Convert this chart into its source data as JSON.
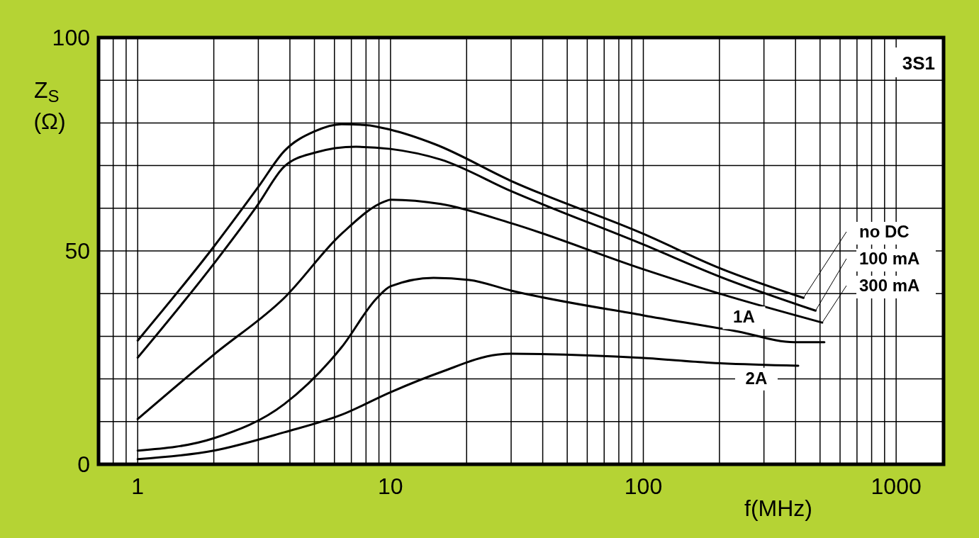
{
  "chart_data": {
    "type": "line",
    "title": "3S1",
    "xlabel": "f(MHz)",
    "ylabel": "Z$_{S}$ (Ω)",
    "log": "x",
    "grid": true,
    "marker": "none",
    "line_style": "solid",
    "xlim": [
      0.7,
      1540
    ],
    "ylim": [
      0,
      100
    ],
    "xticks": [
      {
        "value": 0.8,
        "label": null
      },
      {
        "value": 0.9,
        "label": null
      },
      1,
      {
        "value": 2,
        "label": null
      },
      {
        "value": 3,
        "label": null
      },
      {
        "value": 4,
        "label": null
      },
      {
        "value": 5,
        "label": null
      },
      {
        "value": 6,
        "label": null
      },
      {
        "value": 7,
        "label": null
      },
      {
        "value": 8,
        "label": null
      },
      {
        "value": 9,
        "label": null
      },
      10,
      {
        "value": 20,
        "label": null
      },
      {
        "value": 30,
        "label": null
      },
      {
        "value": 40,
        "label": null
      },
      {
        "value": 50,
        "label": null
      },
      {
        "value": 60,
        "label": null
      },
      {
        "value": 70,
        "label": null
      },
      {
        "value": 80,
        "label": null
      },
      {
        "value": 90,
        "label": null
      },
      100,
      {
        "value": 200,
        "label": null
      },
      {
        "value": 300,
        "label": null
      },
      {
        "value": 400,
        "label": null
      },
      {
        "value": 500,
        "label": null
      },
      {
        "value": 600,
        "label": null
      },
      {
        "value": 700,
        "label": null
      },
      {
        "value": 800,
        "label": null
      },
      {
        "value": 900,
        "label": null
      },
      1000
    ],
    "yticks": [
      0,
      {
        "value": 10,
        "label": null
      },
      {
        "value": 20,
        "label": null
      },
      {
        "value": 30,
        "label": null
      },
      {
        "value": 40,
        "label": null
      },
      50,
      {
        "value": 60,
        "label": null
      },
      {
        "value": 70,
        "label": null
      },
      {
        "value": 80,
        "label": null
      },
      {
        "value": 90,
        "label": null
      },
      100
    ],
    "series": [
      {
        "name": "no DC",
        "color": "#000000",
        "x": [
          1,
          2,
          3,
          3.8,
          5,
          6.4,
          8,
          10,
          15,
          30,
          100,
          200,
          430
        ],
        "values": [
          29,
          51,
          65,
          73.4,
          78,
          79.7,
          79.5,
          78.4,
          75,
          66.4,
          54,
          46,
          39
        ]
      },
      {
        "name": "100 mA",
        "color": "#000000",
        "x": [
          1,
          2,
          3,
          3.8,
          5,
          7.3,
          10,
          15.8,
          30,
          100,
          200,
          480
        ],
        "values": [
          25,
          47,
          61,
          69.8,
          73,
          74.4,
          73.9,
          71.4,
          64,
          51.5,
          44,
          36
        ]
      },
      {
        "name": "300 mA",
        "color": "#000000",
        "x": [
          1,
          2,
          3.8,
          6.4,
          9.5,
          10,
          15.8,
          30,
          100,
          200,
          510
        ],
        "values": [
          10.6,
          25.7,
          39,
          54,
          61.6,
          62,
          61,
          56.5,
          45.7,
          40,
          33.2
        ]
      },
      {
        "name": "1A",
        "color": "#000000",
        "x": [
          1,
          2,
          3.8,
          6.4,
          8.85,
          10,
          14.8,
          20.5,
          30,
          100,
          237,
          395,
          520
        ],
        "values": [
          3.2,
          6.1,
          14.1,
          27.4,
          39,
          41.7,
          43.7,
          43.2,
          40.7,
          34.9,
          31.1,
          28.6,
          28.6
        ]
      },
      {
        "name": "2A",
        "color": "#000000",
        "x": [
          1,
          2,
          3.8,
          6.4,
          10,
          15.8,
          26.5,
          30,
          100,
          183,
          410
        ],
        "values": [
          1.2,
          3.2,
          7.5,
          11.6,
          16.9,
          21.6,
          25.7,
          25.9,
          24.9,
          23.8,
          23.1
        ]
      }
    ]
  }
}
